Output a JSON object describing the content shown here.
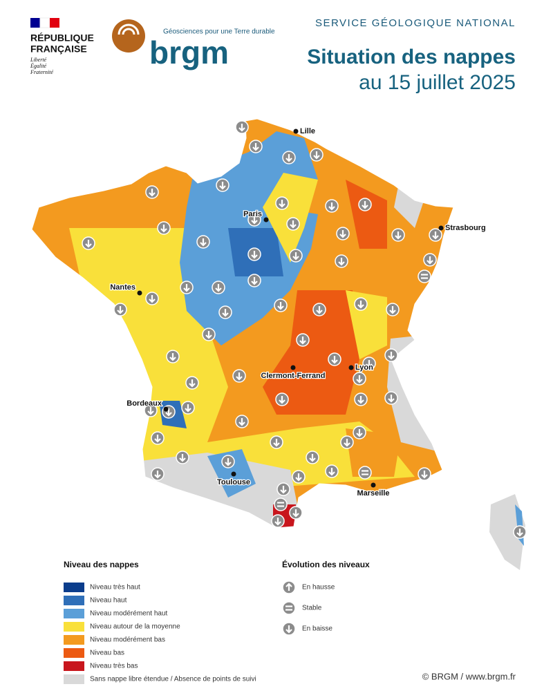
{
  "header": {
    "republique": {
      "line1": "RÉPUBLIQUE",
      "line2": "FRANÇAISE",
      "motto": [
        "Liberté",
        "Égalité",
        "Fraternité"
      ]
    },
    "brgm": {
      "tagline": "Géosciences pour une Terre durable",
      "name": "brgm"
    },
    "service": "SERVICE GÉOLOGIQUE NATIONAL",
    "title": "Situation des nappes",
    "subtitle": "au 15 juillet 2025"
  },
  "map": {
    "cities": [
      "Lille",
      "Paris",
      "Strasbourg",
      "Nantes",
      "Lyon",
      "Clermont-Ferrand",
      "Bordeaux",
      "Toulouse",
      "Marseille"
    ]
  },
  "legend_levels": {
    "title": "Niveau des nappes",
    "items": [
      {
        "label": "Niveau très haut",
        "color": "#0b3d8c"
      },
      {
        "label": "Niveau haut",
        "color": "#2f6fb8"
      },
      {
        "label": "Niveau modérément haut",
        "color": "#5b9fd8"
      },
      {
        "label": "Niveau autour de la moyenne",
        "color": "#f9e03a"
      },
      {
        "label": "Niveau modérément bas",
        "color": "#f39a1f"
      },
      {
        "label": "Niveau bas",
        "color": "#ec5a12"
      },
      {
        "label": "Niveau très bas",
        "color": "#c8161d"
      },
      {
        "label": "Sans nappe libre étendue / Absence de points de suivi",
        "color": "#d9d9d9"
      }
    ]
  },
  "legend_evolution": {
    "title": "Évolution des niveaux",
    "items": [
      "En hausse",
      "Stable",
      "En baisse"
    ]
  },
  "credit": "© BRGM / www.brgm.fr"
}
